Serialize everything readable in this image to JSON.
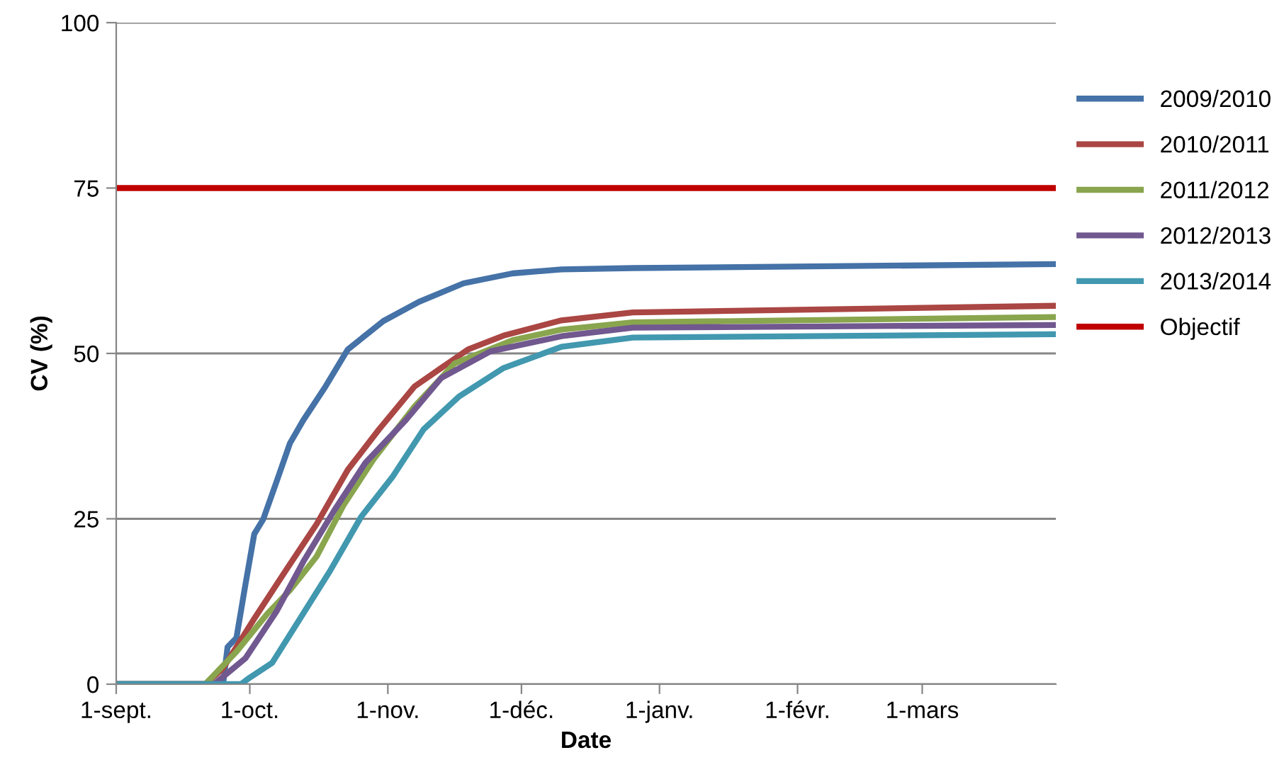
{
  "chart_data": {
    "type": "line",
    "xlabel": "Date",
    "ylabel": "CV (%)",
    "xlim": [
      "2009-09-01",
      "2010-03-31"
    ],
    "xticks": [
      {
        "value": "2009-09-01",
        "label": "1-sept."
      },
      {
        "value": "2009-10-01",
        "label": "1-oct."
      },
      {
        "value": "2009-11-01",
        "label": "1-nov."
      },
      {
        "value": "2009-12-01",
        "label": "1-déc."
      },
      {
        "value": "2010-01-01",
        "label": "1-janv."
      },
      {
        "value": "2010-02-01",
        "label": "1-févr."
      },
      {
        "value": "2010-03-01",
        "label": "1-mars"
      }
    ],
    "ylim": [
      0,
      100
    ],
    "yticks": [
      0,
      25,
      50,
      75,
      100
    ],
    "grid": "y",
    "legend": "right",
    "marker": "none",
    "line_style": "solid",
    "series": [
      {
        "name": "2009/2010",
        "color": "#4572a7",
        "x": [
          "2009-09-01",
          "2009-09-25",
          "2009-09-26",
          "2009-09-28",
          "2009-09-30",
          "2009-10-02",
          "2009-10-04",
          "2009-10-07",
          "2009-10-10",
          "2009-10-13",
          "2009-10-18",
          "2009-10-23",
          "2009-10-31",
          "2009-11-08",
          "2009-11-18",
          "2009-11-29",
          "2009-12-10",
          "2009-12-26",
          "2010-03-31"
        ],
        "values": [
          0,
          0,
          5.6,
          7,
          15,
          22.7,
          24.9,
          30.6,
          36.4,
          39.9,
          45,
          50.6,
          54.9,
          57.8,
          60.6,
          62.1,
          62.7,
          62.9,
          63.5
        ]
      },
      {
        "name": "2010/2011",
        "color": "#aa4643",
        "x": [
          "2009-09-01",
          "2009-09-21",
          "2009-09-25",
          "2009-10-02",
          "2009-10-09",
          "2009-10-16",
          "2009-10-23",
          "2009-10-30",
          "2009-11-07",
          "2009-11-13",
          "2009-11-19",
          "2009-11-27",
          "2009-12-10",
          "2009-12-26",
          "2010-03-31"
        ],
        "values": [
          0,
          0,
          2.4,
          9.9,
          17.1,
          24.2,
          32.4,
          38.5,
          45,
          47.8,
          50.6,
          52.7,
          55,
          56.2,
          57.2
        ]
      },
      {
        "name": "2011/2012",
        "color": "#89a54e",
        "x": [
          "2009-09-01",
          "2009-09-21",
          "2009-09-28",
          "2009-10-05",
          "2009-10-10",
          "2009-10-16",
          "2009-10-22",
          "2009-10-29",
          "2009-11-07",
          "2009-11-16",
          "2009-11-29",
          "2009-12-10",
          "2009-12-26",
          "2010-03-31"
        ],
        "values": [
          0,
          0,
          4.9,
          10.7,
          14.2,
          19.3,
          27,
          34.2,
          42,
          48.5,
          52,
          53.6,
          54.7,
          55.5
        ]
      },
      {
        "name": "2012/2013",
        "color": "#71588f",
        "x": [
          "2009-09-01",
          "2009-09-23",
          "2009-09-30",
          "2009-10-07",
          "2009-10-13",
          "2009-10-20",
          "2009-10-27",
          "2009-11-05",
          "2009-11-13",
          "2009-11-24",
          "2009-12-10",
          "2009-12-26",
          "2010-03-31"
        ],
        "values": [
          0,
          0,
          3.9,
          11,
          18.5,
          26.3,
          33.5,
          39.9,
          46.3,
          50.3,
          52.6,
          53.9,
          54.3
        ]
      },
      {
        "name": "2013/2014",
        "color": "#4198af",
        "x": [
          "2009-09-01",
          "2009-09-29",
          "2009-10-01",
          "2009-10-06",
          "2009-10-12",
          "2009-10-19",
          "2009-10-26",
          "2009-11-02",
          "2009-11-09",
          "2009-11-17",
          "2009-11-27",
          "2009-12-10",
          "2009-12-26",
          "2010-03-31"
        ],
        "values": [
          0,
          0,
          1,
          3.2,
          9.6,
          17.1,
          25.3,
          31.3,
          38.5,
          43.5,
          47.8,
          51,
          52.4,
          52.9
        ]
      }
    ],
    "ref_lines": [
      {
        "axis": "y",
        "value": 75,
        "label": "Objectif",
        "color": "#c00000"
      }
    ]
  }
}
